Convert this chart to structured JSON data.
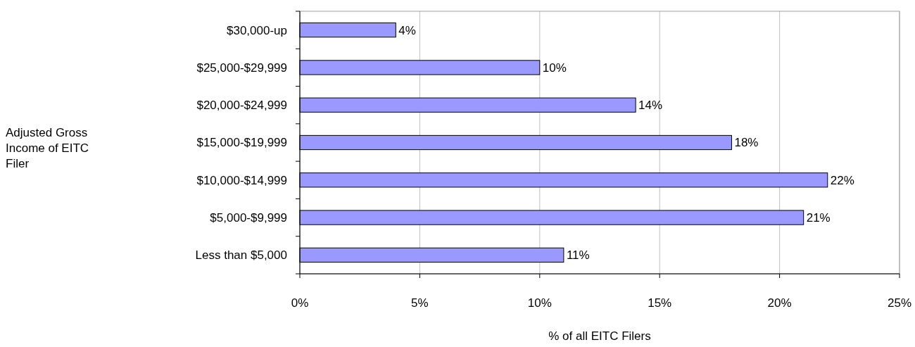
{
  "chart_data": {
    "type": "bar",
    "orientation": "horizontal",
    "xlabel": "% of all EITC Filers",
    "annotations": [
      "Adjusted Gross Income of EITC Filer"
    ],
    "categories": [
      "$30,000-up",
      "$25,000-$29,999",
      "$20,000-$24,999",
      "$15,000-$19,999",
      "$10,000-$14,999",
      "$5,000-$9,999",
      "Less than $5,000"
    ],
    "values": [
      4,
      10,
      14,
      18,
      22,
      21,
      11
    ],
    "value_labels": [
      "4%",
      "10%",
      "14%",
      "18%",
      "22%",
      "21%",
      "11%"
    ],
    "color": "#9999ff",
    "xlim": [
      0,
      25
    ],
    "xticks": [
      {
        "value": 0,
        "label": "0%"
      },
      {
        "value": 5,
        "label": "5%"
      },
      {
        "value": 10,
        "label": "10%"
      },
      {
        "value": 15,
        "label": "15%"
      },
      {
        "value": 20,
        "label": "20%"
      },
      {
        "value": 25,
        "label": "25%"
      }
    ],
    "grid": "x"
  }
}
